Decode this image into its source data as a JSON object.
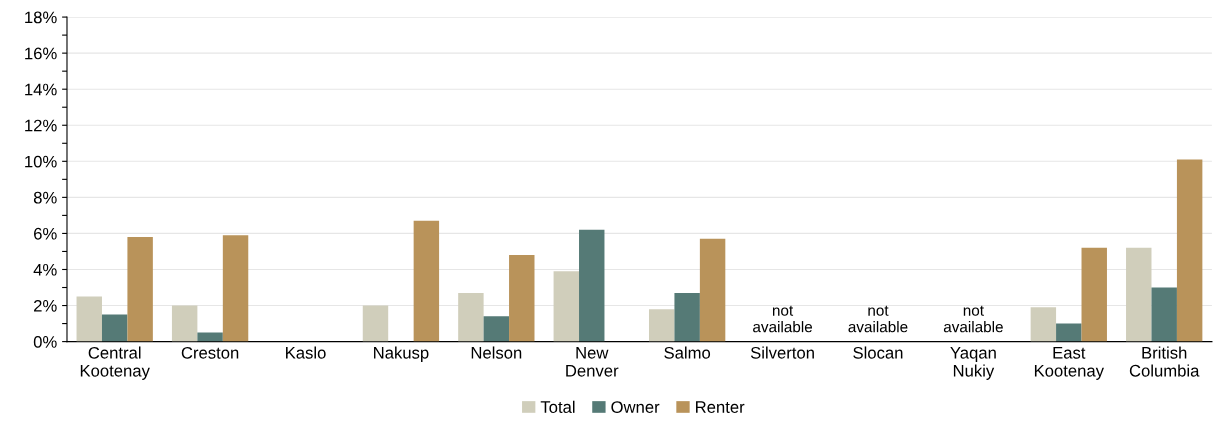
{
  "chart_data": {
    "type": "bar",
    "categories": [
      "Central\nKootenay",
      "Creston",
      "Kaslo",
      "Nakusp",
      "Nelson",
      "New\nDenver",
      "Salmo",
      "Silverton",
      "Slocan",
      "Yaqan\nNukiy",
      "East\nKootenay",
      "British\nColumbia"
    ],
    "series": [
      {
        "name": "Total",
        "color": "#d0cebb",
        "values": [
          2.5,
          2.0,
          0,
          2.0,
          2.7,
          3.9,
          1.8,
          null,
          null,
          null,
          1.9,
          5.2
        ]
      },
      {
        "name": "Owner",
        "color": "#557a76",
        "values": [
          1.5,
          0.5,
          0,
          0,
          1.4,
          6.2,
          2.7,
          null,
          null,
          null,
          1.0,
          3.0
        ]
      },
      {
        "name": "Renter",
        "color": "#b9935a",
        "values": [
          5.8,
          5.9,
          0,
          6.7,
          4.8,
          0,
          5.7,
          null,
          null,
          null,
          5.2,
          10.1
        ]
      }
    ],
    "ylim": [
      0,
      18
    ],
    "yticks": [
      {
        "value": 0,
        "label": "0%"
      },
      {
        "value": 1,
        "label": null
      },
      {
        "value": 2,
        "label": "2%"
      },
      {
        "value": 3,
        "label": null
      },
      {
        "value": 4,
        "label": "4%"
      },
      {
        "value": 5,
        "label": null
      },
      {
        "value": 6,
        "label": "6%"
      },
      {
        "value": 7,
        "label": null
      },
      {
        "value": 8,
        "label": "8%"
      },
      {
        "value": 9,
        "label": null
      },
      {
        "value": 10,
        "label": "10%"
      },
      {
        "value": 11,
        "label": null
      },
      {
        "value": 12,
        "label": "12%"
      },
      {
        "value": 13,
        "label": null
      },
      {
        "value": 14,
        "label": "14%"
      },
      {
        "value": 15,
        "label": null
      },
      {
        "value": 16,
        "label": "16%"
      },
      {
        "value": 17,
        "label": null
      },
      {
        "value": 18,
        "label": "18%"
      }
    ],
    "grid": "y",
    "legend": "bottom",
    "annotations": [
      "not\navailable",
      "not\navailable",
      "not\navailable"
    ]
  }
}
